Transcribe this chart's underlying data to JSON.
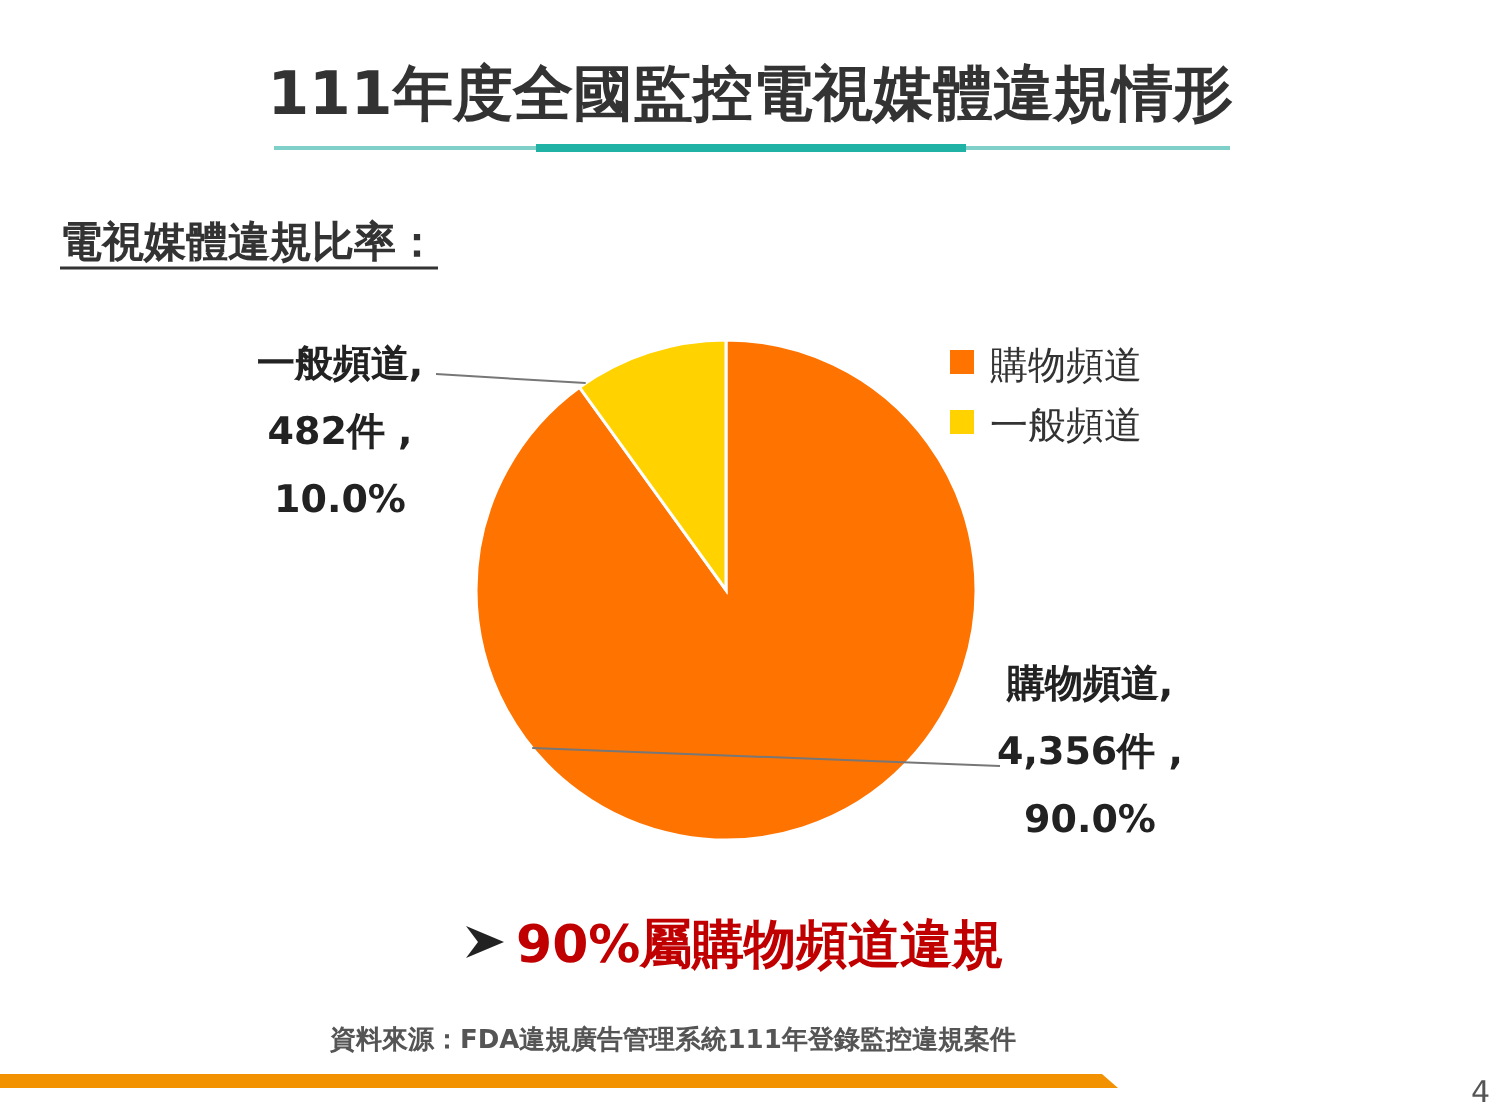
{
  "chart_data": {
    "type": "pie",
    "title": "111年度全國監控電視媒體違規情形",
    "subtitle": "電視媒體違規比率：",
    "categories": [
      "購物頻道",
      "一般頻道"
    ],
    "values": [
      4356,
      482
    ],
    "colors": [
      "#ff7300",
      "#ffd200"
    ],
    "value_labels": [
      "購物頻道,\n4,356件 ,\n90.0%",
      "一般頻道,\n482件 ,\n10.0%"
    ],
    "legend": "top right",
    "annotations": [
      "90%屬購物頻道違規",
      "資料來源：FDA違規廣告管理系統111年登錄監控違規案件",
      "4"
    ]
  }
}
